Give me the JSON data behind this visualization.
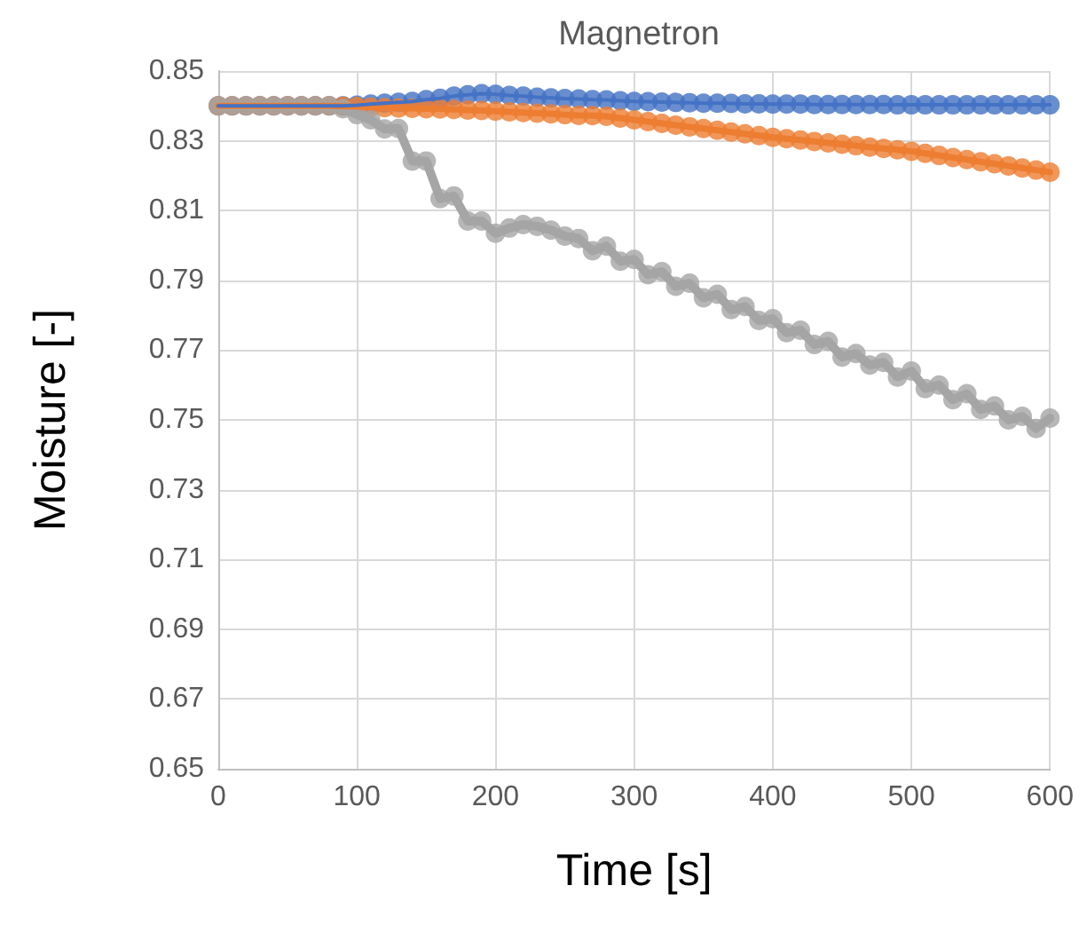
{
  "chart_data": {
    "type": "line",
    "title": "Magnetron",
    "xlabel": "Time [s]",
    "ylabel": "Moisture [-]",
    "x": [
      0,
      10,
      20,
      30,
      40,
      50,
      60,
      70,
      80,
      90,
      100,
      110,
      120,
      130,
      140,
      150,
      160,
      170,
      180,
      190,
      200,
      210,
      220,
      230,
      240,
      250,
      260,
      270,
      280,
      290,
      300,
      310,
      320,
      330,
      340,
      350,
      360,
      370,
      380,
      390,
      400,
      410,
      420,
      430,
      440,
      450,
      460,
      470,
      480,
      490,
      500,
      510,
      520,
      530,
      540,
      550,
      560,
      570,
      580,
      590,
      600
    ],
    "series": [
      {
        "color": "#4472c4",
        "values": [
          0.84,
          0.84,
          0.84,
          0.84,
          0.84,
          0.84,
          0.84,
          0.84,
          0.84,
          0.84,
          0.8402,
          0.8405,
          0.8408,
          0.841,
          0.8413,
          0.8418,
          0.8422,
          0.8428,
          0.8432,
          0.8435,
          0.8433,
          0.843,
          0.8428,
          0.8425,
          0.8423,
          0.8421,
          0.842,
          0.8418,
          0.8417,
          0.8415,
          0.8413,
          0.8412,
          0.8411,
          0.841,
          0.8409,
          0.8408,
          0.8408,
          0.8407,
          0.8406,
          0.8406,
          0.8405,
          0.8405,
          0.8405,
          0.8404,
          0.8404,
          0.8404,
          0.8404,
          0.8404,
          0.8404,
          0.8403,
          0.8403,
          0.8403,
          0.8403,
          0.8403,
          0.8403,
          0.8403,
          0.8403,
          0.8403,
          0.8403,
          0.8403,
          0.8403
        ]
      },
      {
        "color": "#ed7d31",
        "values": [
          0.84,
          0.84,
          0.84,
          0.84,
          0.84,
          0.84,
          0.84,
          0.84,
          0.84,
          0.8399,
          0.8398,
          0.8396,
          0.8395,
          0.8394,
          0.8393,
          0.8392,
          0.8391,
          0.839,
          0.8388,
          0.8387,
          0.8385,
          0.8383,
          0.8381,
          0.8379,
          0.8377,
          0.8375,
          0.8373,
          0.8372,
          0.837,
          0.8365,
          0.836,
          0.8355,
          0.835,
          0.8345,
          0.834,
          0.8335,
          0.833,
          0.8325,
          0.832,
          0.8315,
          0.831,
          0.8306,
          0.8302,
          0.8298,
          0.8294,
          0.829,
          0.8286,
          0.8282,
          0.8278,
          0.8274,
          0.827,
          0.8264,
          0.8258,
          0.8252,
          0.8246,
          0.824,
          0.8234,
          0.8228,
          0.8222,
          0.8216,
          0.821
        ]
      },
      {
        "color": "#a5a5a5",
        "values": [
          0.84,
          0.84,
          0.84,
          0.84,
          0.84,
          0.84,
          0.84,
          0.84,
          0.84,
          0.8392,
          0.8375,
          0.836,
          0.8334,
          0.8335,
          0.8242,
          0.8242,
          0.8134,
          0.8142,
          0.807,
          0.807,
          0.8035,
          0.805,
          0.806,
          0.8055,
          0.8044,
          0.8027,
          0.802,
          0.7985,
          0.7998,
          0.7955,
          0.796,
          0.7916,
          0.7925,
          0.7883,
          0.7892,
          0.785,
          0.786,
          0.7816,
          0.7825,
          0.7785,
          0.779,
          0.775,
          0.7757,
          0.7716,
          0.7725,
          0.768,
          0.769,
          0.7657,
          0.7665,
          0.7623,
          0.764,
          0.759,
          0.76,
          0.7558,
          0.7575,
          0.753,
          0.754,
          0.75,
          0.751,
          0.7475,
          0.7505
        ]
      }
    ],
    "xlim": [
      0,
      600
    ],
    "xticks": [
      0,
      100,
      200,
      300,
      400,
      500,
      600
    ],
    "ylim": [
      0.65,
      0.85
    ],
    "yticks": [
      0.65,
      0.67,
      0.69,
      0.71,
      0.73,
      0.75,
      0.77,
      0.79,
      0.81,
      0.83,
      0.85
    ],
    "grid": true,
    "marker": "circle",
    "line_style": "solid"
  }
}
